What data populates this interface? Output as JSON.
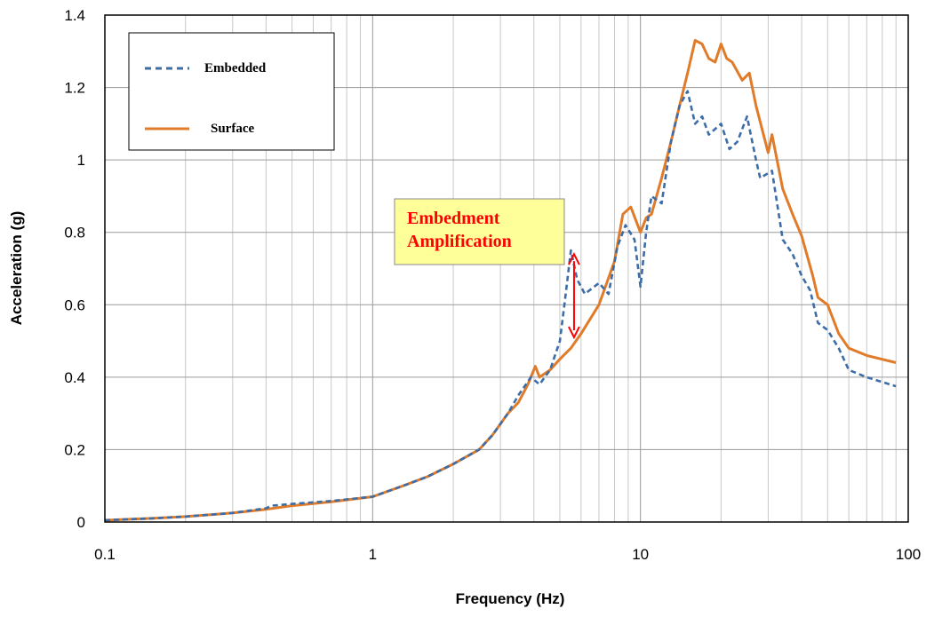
{
  "chart_data": {
    "type": "line",
    "title": "",
    "xlabel": "Frequency (Hz)",
    "ylabel": "Acceleration (g)",
    "x_scale": "log",
    "xlim": [
      0.1,
      100
    ],
    "ylim": [
      0,
      1.4
    ],
    "x_ticks": [
      "0.1",
      "1",
      "10",
      "100"
    ],
    "y_ticks": [
      "0",
      "0.2",
      "0.4",
      "0.6",
      "0.8",
      "1",
      "1.2",
      "1.4"
    ],
    "grid": true,
    "legend_position": "top-left",
    "series": [
      {
        "name": "Embedded",
        "style": "dashed",
        "color": "#3d6da8",
        "points": [
          [
            0.1,
            0.005
          ],
          [
            0.15,
            0.01
          ],
          [
            0.2,
            0.015
          ],
          [
            0.3,
            0.025
          ],
          [
            0.4,
            0.038
          ],
          [
            0.42,
            0.045
          ],
          [
            0.5,
            0.05
          ],
          [
            0.7,
            0.058
          ],
          [
            1.0,
            0.07
          ],
          [
            1.3,
            0.1
          ],
          [
            1.6,
            0.125
          ],
          [
            2.0,
            0.16
          ],
          [
            2.5,
            0.2
          ],
          [
            2.8,
            0.24
          ],
          [
            3.2,
            0.3
          ],
          [
            3.5,
            0.35
          ],
          [
            3.9,
            0.4
          ],
          [
            4.2,
            0.38
          ],
          [
            4.6,
            0.42
          ],
          [
            5.0,
            0.5
          ],
          [
            5.2,
            0.6
          ],
          [
            5.5,
            0.75
          ],
          [
            5.8,
            0.67
          ],
          [
            6.2,
            0.63
          ],
          [
            7.0,
            0.66
          ],
          [
            7.6,
            0.63
          ],
          [
            8.2,
            0.76
          ],
          [
            8.8,
            0.82
          ],
          [
            9.5,
            0.78
          ],
          [
            10.0,
            0.65
          ],
          [
            10.5,
            0.8
          ],
          [
            11.0,
            0.9
          ],
          [
            12.0,
            0.88
          ],
          [
            13.0,
            1.05
          ],
          [
            14.0,
            1.15
          ],
          [
            15.0,
            1.19
          ],
          [
            16.0,
            1.1
          ],
          [
            17.0,
            1.12
          ],
          [
            18.0,
            1.07
          ],
          [
            20.0,
            1.1
          ],
          [
            21.5,
            1.03
          ],
          [
            23.0,
            1.05
          ],
          [
            25.0,
            1.12
          ],
          [
            27.0,
            1.0
          ],
          [
            28.0,
            0.95
          ],
          [
            31.0,
            0.97
          ],
          [
            34.0,
            0.78
          ],
          [
            37.0,
            0.74
          ],
          [
            40.0,
            0.68
          ],
          [
            43.0,
            0.64
          ],
          [
            46.0,
            0.55
          ],
          [
            50.0,
            0.53
          ],
          [
            55.0,
            0.48
          ],
          [
            60.0,
            0.42
          ],
          [
            70.0,
            0.4
          ],
          [
            90.0,
            0.375
          ]
        ]
      },
      {
        "name": "Surface",
        "style": "solid",
        "color": "#e07b2a",
        "points": [
          [
            0.1,
            0.005
          ],
          [
            0.15,
            0.01
          ],
          [
            0.2,
            0.015
          ],
          [
            0.3,
            0.025
          ],
          [
            0.4,
            0.035
          ],
          [
            0.5,
            0.045
          ],
          [
            0.7,
            0.056
          ],
          [
            1.0,
            0.07
          ],
          [
            1.3,
            0.1
          ],
          [
            1.6,
            0.125
          ],
          [
            2.0,
            0.16
          ],
          [
            2.5,
            0.2
          ],
          [
            2.8,
            0.24
          ],
          [
            3.2,
            0.3
          ],
          [
            3.5,
            0.33
          ],
          [
            3.8,
            0.38
          ],
          [
            4.05,
            0.43
          ],
          [
            4.2,
            0.4
          ],
          [
            4.6,
            0.42
          ],
          [
            5.0,
            0.45
          ],
          [
            5.5,
            0.48
          ],
          [
            6.0,
            0.52
          ],
          [
            7.0,
            0.6
          ],
          [
            8.0,
            0.72
          ],
          [
            8.6,
            0.85
          ],
          [
            9.2,
            0.87
          ],
          [
            10.0,
            0.8
          ],
          [
            10.5,
            0.84
          ],
          [
            11.0,
            0.85
          ],
          [
            12.0,
            0.95
          ],
          [
            13.0,
            1.05
          ],
          [
            14.0,
            1.15
          ],
          [
            15.0,
            1.24
          ],
          [
            16.0,
            1.33
          ],
          [
            17.0,
            1.32
          ],
          [
            18.0,
            1.28
          ],
          [
            19.0,
            1.27
          ],
          [
            20.0,
            1.32
          ],
          [
            21.0,
            1.28
          ],
          [
            22.0,
            1.27
          ],
          [
            24.0,
            1.22
          ],
          [
            25.5,
            1.24
          ],
          [
            27.0,
            1.15
          ],
          [
            30.0,
            1.02
          ],
          [
            31.0,
            1.07
          ],
          [
            34.0,
            0.92
          ],
          [
            37.0,
            0.85
          ],
          [
            40.0,
            0.79
          ],
          [
            44.0,
            0.68
          ],
          [
            46.0,
            0.62
          ],
          [
            50.0,
            0.6
          ],
          [
            55.0,
            0.52
          ],
          [
            60.0,
            0.48
          ],
          [
            70.0,
            0.46
          ],
          [
            90.0,
            0.44
          ]
        ]
      }
    ],
    "annotations": [
      {
        "text_line1": "Embedment",
        "text_line2": "Amplification",
        "color": "#ff0000",
        "box_color": "#ffff99",
        "arrow_x": 5.65,
        "arrow_y": [
          0.51,
          0.74
        ]
      }
    ]
  }
}
